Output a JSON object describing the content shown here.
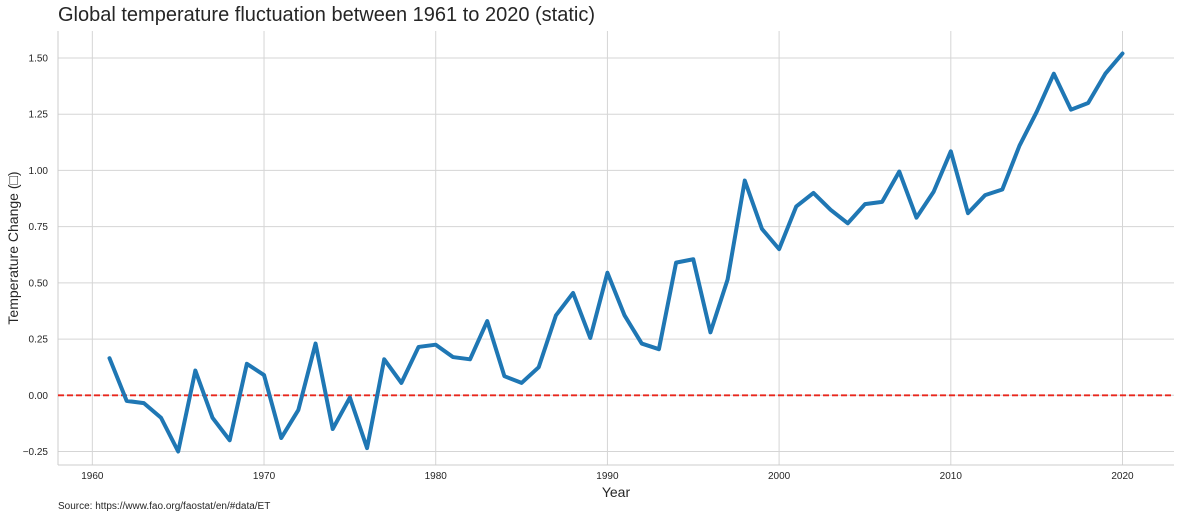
{
  "chart_data": {
    "type": "line",
    "title": "Global temperature fluctuation between 1961 to 2020 (static)",
    "xlabel": "Year",
    "ylabel": "Temperature Change (□)",
    "source": "Source: https://www.fao.org/faostat/en/#data/ET",
    "xlim": [
      1958,
      2023
    ],
    "ylim": [
      -0.31,
      1.62
    ],
    "x_ticks": [
      1960,
      1970,
      1980,
      1990,
      2000,
      2010,
      2020
    ],
    "x_tick_labels": [
      "1960",
      "1970",
      "1980",
      "1990",
      "2000",
      "2010",
      "2020"
    ],
    "y_ticks": [
      -0.25,
      0,
      0.25,
      0.5,
      0.75,
      1.0,
      1.25,
      1.5
    ],
    "y_tick_labels": [
      "−0.25",
      "0.00",
      "0.25",
      "0.50",
      "0.75",
      "1.00",
      "1.25",
      "1.50"
    ],
    "grid": true,
    "reference_line": {
      "y": 0,
      "color": "#e8271d",
      "style": "dashed"
    },
    "series": [
      {
        "color": "#1f77b4",
        "x": [
          1961,
          1962,
          1963,
          1964,
          1965,
          1966,
          1967,
          1968,
          1969,
          1970,
          1971,
          1972,
          1973,
          1974,
          1975,
          1976,
          1977,
          1978,
          1979,
          1980,
          1981,
          1982,
          1983,
          1984,
          1985,
          1986,
          1987,
          1988,
          1989,
          1990,
          1991,
          1992,
          1993,
          1994,
          1995,
          1996,
          1997,
          1998,
          1999,
          2000,
          2001,
          2002,
          2003,
          2004,
          2005,
          2006,
          2007,
          2008,
          2009,
          2010,
          2011,
          2012,
          2013,
          2014,
          2015,
          2016,
          2017,
          2018,
          2019,
          2020
        ],
        "y": [
          0.165,
          -0.025,
          -0.035,
          -0.1,
          -0.25,
          0.11,
          -0.1,
          -0.2,
          0.14,
          0.09,
          -0.19,
          -0.065,
          0.23,
          -0.15,
          -0.01,
          -0.235,
          0.16,
          0.055,
          0.215,
          0.225,
          0.17,
          0.16,
          0.33,
          0.085,
          0.055,
          0.125,
          0.355,
          0.455,
          0.255,
          0.545,
          0.355,
          0.23,
          0.205,
          0.59,
          0.605,
          0.28,
          0.515,
          0.955,
          0.74,
          0.65,
          0.84,
          0.9,
          0.825,
          0.765,
          0.85,
          0.86,
          0.995,
          0.79,
          0.905,
          1.085,
          0.81,
          0.89,
          0.915,
          1.11,
          1.26,
          1.43,
          1.27,
          1.3,
          1.43,
          1.52
        ]
      }
    ]
  }
}
